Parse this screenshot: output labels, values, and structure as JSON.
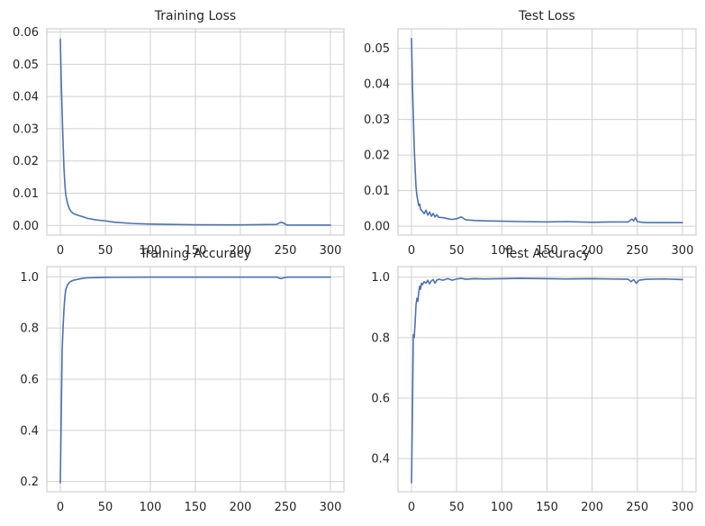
{
  "figure": {
    "background": "#ffffff",
    "line_color": "#4c72b0",
    "grid_color": "#d0d0d0"
  },
  "chart_data": [
    {
      "type": "line",
      "title": "Training Loss",
      "xlabel": "",
      "ylabel": "",
      "xlim": [
        -15,
        315
      ],
      "ylim": [
        -0.003,
        0.061
      ],
      "xticks": [
        0,
        50,
        100,
        150,
        200,
        250,
        300
      ],
      "yticks": [
        0.0,
        0.01,
        0.02,
        0.03,
        0.04,
        0.05,
        0.06
      ],
      "ytick_labels": [
        "0.00",
        "0.01",
        "0.02",
        "0.03",
        "0.04",
        "0.05",
        "0.06"
      ],
      "grid": true,
      "series": [
        {
          "x": [
            0,
            1,
            2,
            3,
            4,
            5,
            6,
            8,
            10,
            12,
            15,
            20,
            25,
            30,
            40,
            50,
            60,
            80,
            100,
            150,
            200,
            240,
            245,
            248,
            252,
            260,
            300
          ],
          "y": [
            0.0578,
            0.045,
            0.035,
            0.026,
            0.018,
            0.013,
            0.0095,
            0.0068,
            0.0052,
            0.0043,
            0.0036,
            0.0031,
            0.0027,
            0.0022,
            0.0017,
            0.0014,
            0.001,
            0.0006,
            0.0004,
            0.0002,
            0.00015,
            0.0003,
            0.001,
            0.0007,
            0.0001,
            0.0001,
            0.0001
          ]
        }
      ]
    },
    {
      "type": "line",
      "title": "Test Loss",
      "xlabel": "",
      "ylabel": "",
      "xlim": [
        -15,
        315
      ],
      "ylim": [
        -0.0025,
        0.0555
      ],
      "xticks": [
        0,
        50,
        100,
        150,
        200,
        250,
        300
      ],
      "yticks": [
        0.0,
        0.01,
        0.02,
        0.03,
        0.04,
        0.05
      ],
      "ytick_labels": [
        "0.00",
        "0.01",
        "0.02",
        "0.03",
        "0.04",
        "0.05"
      ],
      "grid": true,
      "series": [
        {
          "x": [
            0,
            1,
            2,
            3,
            4,
            5,
            6,
            7,
            8,
            9,
            10,
            12,
            14,
            16,
            18,
            20,
            22,
            24,
            26,
            28,
            30,
            35,
            40,
            45,
            50,
            55,
            60,
            70,
            80,
            100,
            120,
            150,
            170,
            200,
            220,
            240,
            244,
            246,
            248,
            250,
            255,
            260,
            300
          ],
          "y": [
            0.0528,
            0.04,
            0.031,
            0.022,
            0.016,
            0.011,
            0.0085,
            0.0072,
            0.0058,
            0.0062,
            0.0048,
            0.0042,
            0.0035,
            0.0045,
            0.0031,
            0.004,
            0.0028,
            0.0036,
            0.0026,
            0.0032,
            0.0025,
            0.0024,
            0.0021,
            0.0019,
            0.0021,
            0.0026,
            0.0018,
            0.0016,
            0.0015,
            0.0014,
            0.0013,
            0.0012,
            0.0013,
            0.0011,
            0.0012,
            0.0012,
            0.002,
            0.0015,
            0.0024,
            0.0013,
            0.0011,
            0.001,
            0.001
          ]
        }
      ]
    },
    {
      "type": "line",
      "title": "Training Accuracy",
      "xlabel": "",
      "ylabel": "",
      "xlim": [
        -15,
        315
      ],
      "ylim": [
        0.16,
        1.04
      ],
      "xticks": [
        0,
        50,
        100,
        150,
        200,
        250,
        300
      ],
      "yticks": [
        0.2,
        0.4,
        0.6,
        0.8,
        1.0
      ],
      "ytick_labels": [
        "0.2",
        "0.4",
        "0.6",
        "0.8",
        "1.0"
      ],
      "grid": true,
      "series": [
        {
          "x": [
            0,
            1,
            2,
            3,
            4,
            5,
            6,
            8,
            10,
            12,
            15,
            20,
            25,
            30,
            40,
            50,
            100,
            150,
            200,
            240,
            245,
            248,
            252,
            300
          ],
          "y": [
            0.195,
            0.45,
            0.71,
            0.8,
            0.87,
            0.92,
            0.95,
            0.968,
            0.978,
            0.983,
            0.987,
            0.991,
            0.994,
            0.996,
            0.997,
            0.998,
            0.999,
            0.999,
            0.999,
            0.999,
            0.993,
            0.996,
            0.999,
            0.999
          ]
        }
      ]
    },
    {
      "type": "line",
      "title": "Test Accuracy",
      "xlabel": "",
      "ylabel": "",
      "xlim": [
        -15,
        315
      ],
      "ylim": [
        0.29,
        1.035
      ],
      "xticks": [
        0,
        50,
        100,
        150,
        200,
        250,
        300
      ],
      "yticks": [
        0.4,
        0.6,
        0.8,
        1.0
      ],
      "ytick_labels": [
        "0.4",
        "0.6",
        "0.8",
        "1.0"
      ],
      "grid": true,
      "series": [
        {
          "x": [
            0,
            1,
            2,
            3,
            4,
            5,
            6,
            7,
            8,
            9,
            10,
            11,
            12,
            14,
            16,
            18,
            20,
            22,
            24,
            26,
            28,
            30,
            35,
            40,
            45,
            50,
            55,
            60,
            70,
            80,
            100,
            120,
            150,
            170,
            200,
            220,
            240,
            243,
            246,
            249,
            252,
            260,
            280,
            300
          ],
          "y": [
            0.32,
            0.55,
            0.81,
            0.8,
            0.85,
            0.91,
            0.93,
            0.92,
            0.95,
            0.97,
            0.96,
            0.98,
            0.975,
            0.985,
            0.98,
            0.99,
            0.978,
            0.988,
            0.992,
            0.98,
            0.99,
            0.993,
            0.99,
            0.995,
            0.99,
            0.994,
            0.996,
            0.993,
            0.995,
            0.994,
            0.995,
            0.996,
            0.995,
            0.994,
            0.995,
            0.994,
            0.993,
            0.985,
            0.992,
            0.98,
            0.99,
            0.993,
            0.994,
            0.992
          ]
        }
      ]
    }
  ]
}
